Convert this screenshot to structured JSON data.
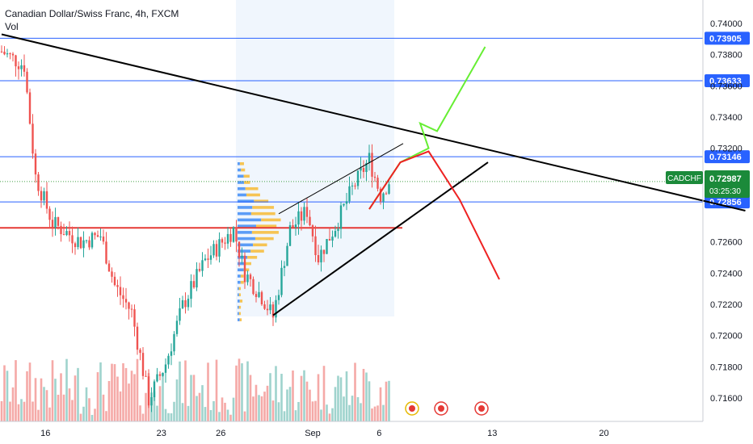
{
  "header": {
    "title": "Canadian Dollar/Swiss Franc, 4h, FXCM",
    "indicator": "Vol"
  },
  "symbol_tag": {
    "label": "CADCHF",
    "price": "0.72987",
    "countdown": "03:25:30"
  },
  "colors": {
    "bull": "#26a69a",
    "bear": "#ef5350",
    "vol_bull": "#9fd3cd",
    "vol_bear": "#f5a9a7",
    "hline": "#2962ff",
    "support": "#e53935",
    "trend": "#000000",
    "proj_up": "#66ee33",
    "proj_down": "#ee2222",
    "vp_up": "#5b9cf6",
    "vp_down": "#f6c453",
    "tag": "#1b8a3a"
  },
  "chart_data": {
    "type": "candlestick",
    "instrument": "Canadian Dollar/Swiss Franc",
    "timeframe": "4h",
    "source": "FXCM",
    "ylim": [
      0.7145,
      0.7415
    ],
    "x_ticks": [
      "16",
      "23",
      "26",
      "Sep",
      "6",
      "13",
      "20"
    ],
    "y_ticks": [
      "0.74000",
      "0.73800",
      "0.73600",
      "0.73400",
      "0.73200",
      "0.72600",
      "0.72400",
      "0.72200",
      "0.72000",
      "0.71800",
      "0.71600"
    ],
    "levels": [
      "0.73905",
      "0.73633",
      "0.73146",
      "0.72856"
    ],
    "last_price": "0.72987",
    "support_level": 0.7269,
    "key_points": [
      {
        "bar": 0,
        "price": 0.7382
      },
      {
        "bar": 8,
        "price": 0.7373
      },
      {
        "bar": 12,
        "price": 0.7302
      },
      {
        "bar": 18,
        "price": 0.7272
      },
      {
        "bar": 28,
        "price": 0.726
      },
      {
        "bar": 35,
        "price": 0.7264
      },
      {
        "bar": 40,
        "price": 0.7232
      },
      {
        "bar": 46,
        "price": 0.7215
      },
      {
        "bar": 52,
        "price": 0.7159
      },
      {
        "bar": 58,
        "price": 0.7182
      },
      {
        "bar": 64,
        "price": 0.7219
      },
      {
        "bar": 72,
        "price": 0.7248
      },
      {
        "bar": 82,
        "price": 0.7268
      },
      {
        "bar": 86,
        "price": 0.724
      },
      {
        "bar": 92,
        "price": 0.7225
      },
      {
        "bar": 96,
        "price": 0.7212
      },
      {
        "bar": 102,
        "price": 0.7268
      },
      {
        "bar": 108,
        "price": 0.728
      },
      {
        "bar": 112,
        "price": 0.725
      },
      {
        "bar": 118,
        "price": 0.727
      },
      {
        "bar": 124,
        "price": 0.7294
      },
      {
        "bar": 130,
        "price": 0.7313
      },
      {
        "bar": 134,
        "price": 0.729
      },
      {
        "bar": 137,
        "price": 0.7299
      }
    ],
    "trendlines": [
      {
        "name": "descending resistance",
        "from": {
          "bar": 0,
          "price": 0.7393
        },
        "to": {
          "bar": 263,
          "price": 0.728
        }
      },
      {
        "name": "ascending support",
        "from": {
          "bar": 96,
          "price": 0.7213
        },
        "to": {
          "bar": 172,
          "price": 0.7311
        }
      },
      {
        "name": "channel top",
        "from": {
          "bar": 98,
          "price": 0.7278
        },
        "to": {
          "bar": 142,
          "price": 0.7323
        }
      }
    ],
    "projections": [
      {
        "name": "bullish",
        "points": [
          {
            "bar": 130,
            "price": 0.7281
          },
          {
            "bar": 141,
            "price": 0.7311
          },
          {
            "bar": 151,
            "price": 0.732
          },
          {
            "bar": 148,
            "price": 0.7336
          },
          {
            "bar": 154,
            "price": 0.7331
          },
          {
            "bar": 171,
            "price": 0.7385
          }
        ]
      },
      {
        "name": "bearish",
        "points": [
          {
            "bar": 130,
            "price": 0.7281
          },
          {
            "bar": 141,
            "price": 0.7311
          },
          {
            "bar": 151,
            "price": 0.7318
          },
          {
            "bar": 162,
            "price": 0.7287
          },
          {
            "bar": 176,
            "price": 0.7236
          }
        ]
      }
    ]
  }
}
